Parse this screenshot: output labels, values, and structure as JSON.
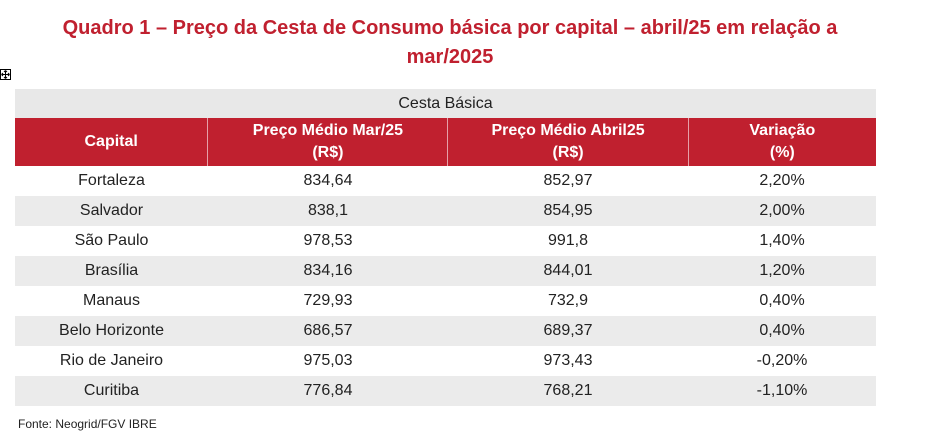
{
  "title": "Quadro 1 – Preço da Cesta de Consumo básica por capital – abril/25 em relação a mar/2025",
  "icons": {
    "move_handle": "table-move-handle-icon"
  },
  "table": {
    "super_header": "Cesta Básica",
    "columns": [
      {
        "line1": "Capital",
        "line2": ""
      },
      {
        "line1": "Preço Médio Mar/25",
        "line2": "(R$)"
      },
      {
        "line1": "Preço Médio Abril25",
        "line2": "(R$)"
      },
      {
        "line1": "Variação",
        "line2": "(%)"
      }
    ],
    "rows": [
      {
        "capital": "Fortaleza",
        "mar": "834,64",
        "abr": "852,97",
        "var": "2,20%"
      },
      {
        "capital": "Salvador",
        "mar": "838,1",
        "abr": "854,95",
        "var": "2,00%"
      },
      {
        "capital": "São Paulo",
        "mar": "978,53",
        "abr": "991,8",
        "var": "1,40%"
      },
      {
        "capital": "Brasília",
        "mar": "834,16",
        "abr": "844,01",
        "var": "1,20%"
      },
      {
        "capital": "Manaus",
        "mar": "729,93",
        "abr": "732,9",
        "var": "0,40%"
      },
      {
        "capital": "Belo Horizonte",
        "mar": "686,57",
        "abr": "689,37",
        "var": "0,40%"
      },
      {
        "capital": "Rio de Janeiro",
        "mar": "975,03",
        "abr": "973,43",
        "var": "-0,20%"
      },
      {
        "capital": "Curitiba",
        "mar": "776,84",
        "abr": "768,21",
        "var": "-1,10%"
      }
    ]
  },
  "source": "Fonte: Neogrid/FGV IBRE",
  "colors": {
    "header_red": "#c0202f",
    "stripe_gray": "#ebebeb"
  }
}
